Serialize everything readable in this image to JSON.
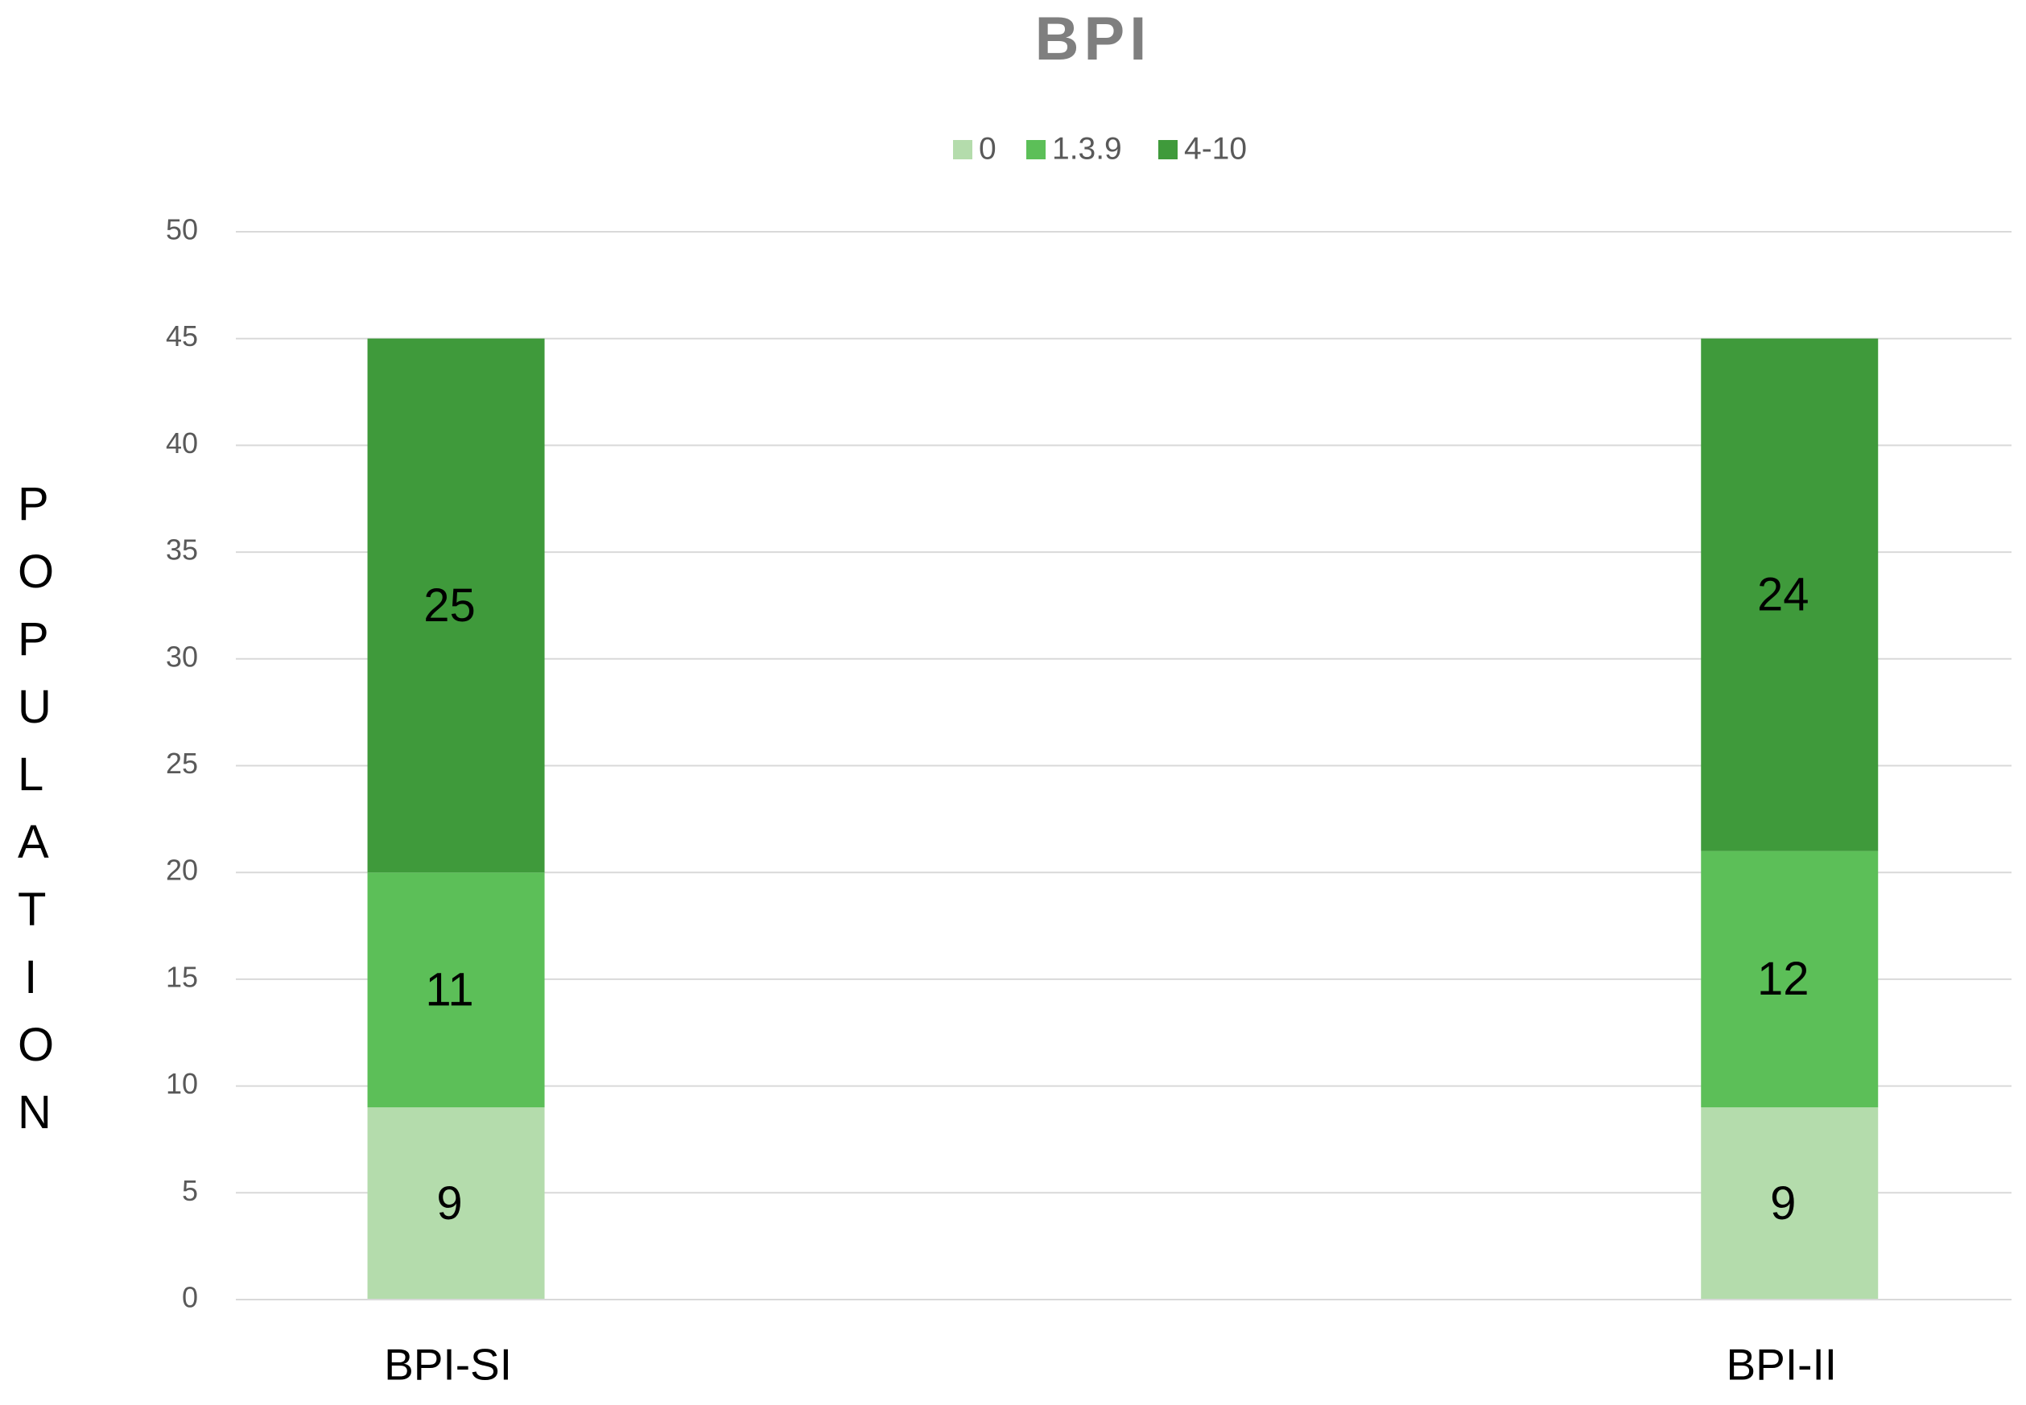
{
  "chart_data": {
    "type": "stacked_bar",
    "title": "BPI",
    "y_label": "POPULATION",
    "categories": [
      "BPI-SI",
      "BPI-II"
    ],
    "series": [
      {
        "name": "0",
        "color": "#b4dcac",
        "values": [
          9,
          9
        ]
      },
      {
        "name": "1.3.9",
        "color": "#5cbf58",
        "values": [
          11,
          12
        ]
      },
      {
        "name": "4-10",
        "color": "#3f9a3b",
        "values": [
          25,
          24
        ]
      }
    ],
    "ylim": [
      0,
      50
    ],
    "yticks": [
      0,
      5,
      10,
      15,
      20,
      25,
      30,
      35,
      40,
      45,
      50
    ],
    "grid": true,
    "legend": "top"
  }
}
